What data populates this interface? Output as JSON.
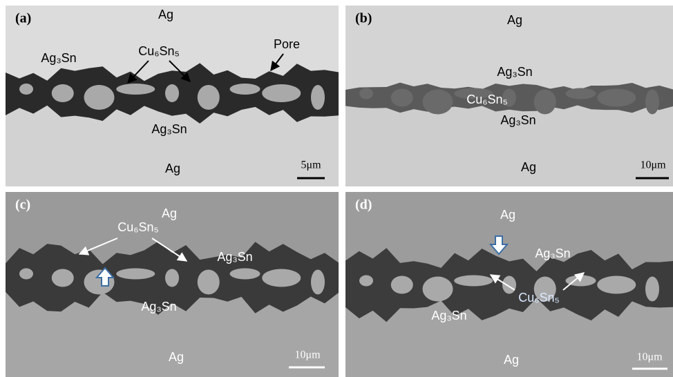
{
  "panels": [
    {
      "label": "(a)",
      "annotations": [
        "Ag",
        "Ag₃Sn",
        "Cu₆Sn₅",
        "Pore",
        "Ag₃Sn",
        "Ag"
      ],
      "scale_bar": "5μm"
    },
    {
      "label": "(b)",
      "annotations": [
        "Ag",
        "Ag₃Sn",
        "Cu₆Sn₅",
        "Ag₃Sn",
        "Ag"
      ],
      "scale_bar": "10μm"
    },
    {
      "label": "(c)",
      "annotations": [
        "Ag",
        "Cu₆Sn₅",
        "Ag₃Sn",
        "Ag₃Sn",
        "Ag"
      ],
      "scale_bar": "10μm"
    },
    {
      "label": "(d)",
      "annotations": [
        "Ag",
        "Ag₃Sn",
        "Cu₆Sn₅",
        "Ag₃Sn",
        "Ag"
      ],
      "scale_bar": "10μm"
    }
  ]
}
